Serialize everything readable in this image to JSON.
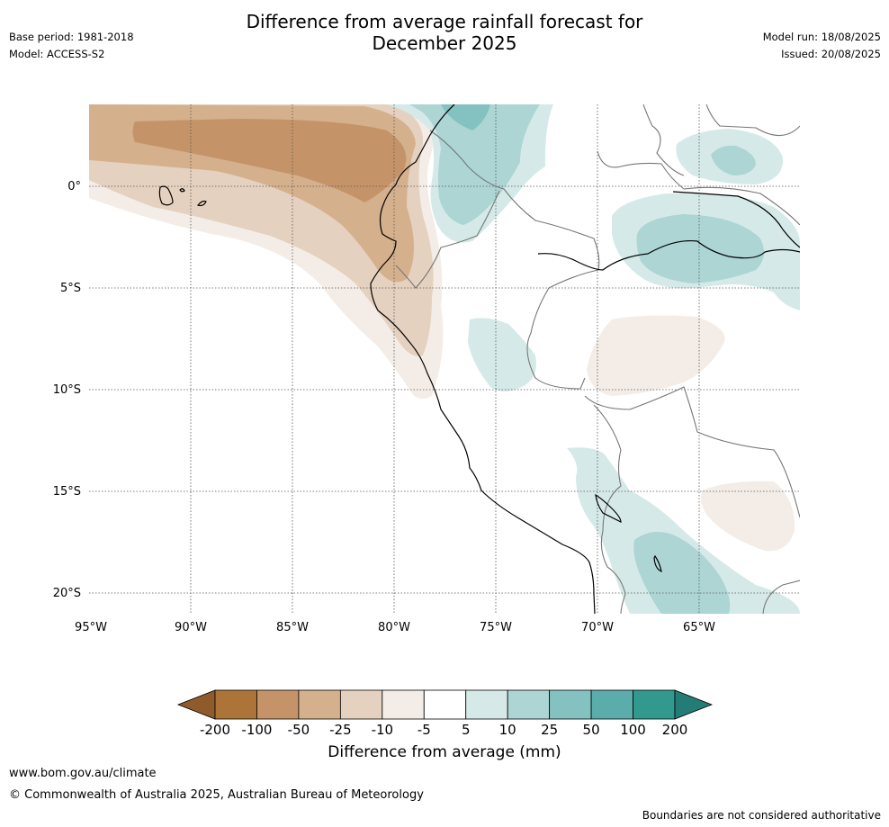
{
  "title": {
    "line1": "Difference from average rainfall forecast for",
    "line2": "December 2025"
  },
  "meta": {
    "base_period": "Base period: 1981-2018",
    "model": "Model: ACCESS-S2",
    "model_run": "Model run: 18/08/2025",
    "issued": "Issued: 20/08/2025"
  },
  "map": {
    "latitude_labels": [
      "0°",
      "5°S",
      "10°S",
      "15°S",
      "20°S"
    ],
    "longitude_labels": [
      "95°W",
      "90°W",
      "85°W",
      "80°W",
      "75°W",
      "70°W",
      "65°W"
    ],
    "extent": {
      "lon_min": -95,
      "lon_max": -60,
      "lat_min": -21,
      "lat_max": 4
    }
  },
  "colorbar": {
    "title": "Difference from average (mm)",
    "tick_labels": [
      "-200",
      "-100",
      "-50",
      "-25",
      "-10",
      "-5",
      "5",
      "10",
      "25",
      "50",
      "100",
      "200"
    ],
    "colors": {
      "below_-200": "#8f5b2b",
      "-200_-100": "#ad7439",
      "-100_-50": "#c49468",
      "-50_-25": "#d5b08d",
      "-25_-10": "#e5d1bf",
      "-10_-5": "#f4ede7",
      "-5_5": "#ffffff",
      "5_10": "#d5eae8",
      "10_25": "#acd5d4",
      "25_50": "#83c2c0",
      "50_100": "#5aadab",
      "100_200": "#32998f",
      "above_200": "#237c75"
    }
  },
  "footer": {
    "url": "www.bom.gov.au/climate",
    "copyright": "© Commonwealth of Australia 2025, Australian Bureau of Meteorology",
    "note": "Boundaries are not considered authoritative"
  }
}
